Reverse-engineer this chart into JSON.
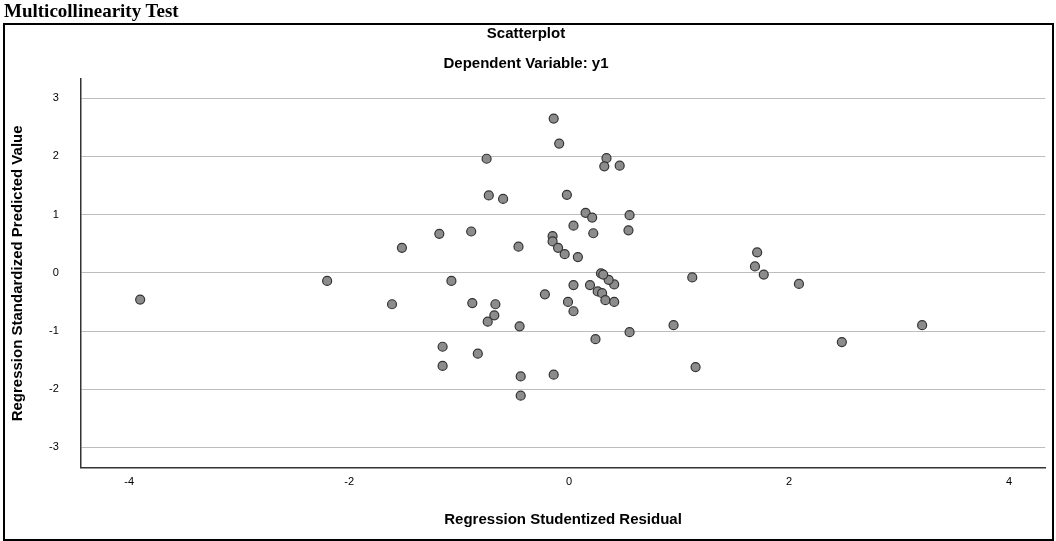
{
  "chart_data": {
    "type": "scatter",
    "title": "Scatterplot",
    "subtitle": "Dependent Variable: y1",
    "xlabel": "Regression Studentized Residual",
    "ylabel": "Regression Standardized Predicted Value",
    "annotations": [
      "Multicollinearity Test"
    ],
    "xlim": [
      -4.44,
      4.33
    ],
    "ylim": [
      -3.35,
      3.33
    ],
    "xticks": [
      -4,
      -2,
      0,
      2,
      4
    ],
    "yticks": [
      -3,
      -2,
      -1,
      0,
      1,
      2,
      3
    ],
    "grid": "y",
    "legend": false,
    "marker": "circle",
    "series": [
      {
        "color": "#8c8c8c",
        "x": [
          -3.9,
          -2.2,
          -1.52,
          -1.61,
          -1.18,
          -1.07,
          -1.15,
          -1.15,
          -0.89,
          -0.88,
          -0.67,
          -0.68,
          -0.74,
          -0.45,
          -0.22,
          0.04,
          0.19,
          -0.01,
          0.04,
          0.26,
          0.3,
          0.33,
          0.41,
          0.41,
          0.36,
          0.29,
          0.31,
          0.24,
          0.55,
          -0.83,
          -0.44,
          -0.14,
          -0.44,
          -0.14,
          -0.09,
          -0.75,
          0.34,
          0.32,
          0.46,
          -0.73,
          -0.6,
          -0.02,
          0.15,
          0.21,
          0.55,
          0.04,
          0.22,
          0.54,
          -0.15,
          -0.15,
          -0.1,
          -0.46,
          -0.04,
          0.08,
          0.95,
          1.12,
          1.15,
          1.71,
          1.69,
          1.77,
          2.09,
          2.48,
          3.21
        ],
        "values": [
          -0.46,
          -0.14,
          0.43,
          -0.54,
          0.67,
          -0.14,
          -1.27,
          -1.6,
          0.71,
          -0.52,
          -0.54,
          -0.73,
          -0.84,
          -0.92,
          -0.37,
          -0.21,
          -0.21,
          -0.5,
          -0.66,
          -0.32,
          -0.35,
          -0.47,
          -0.5,
          -0.2,
          -0.12,
          -0.01,
          -0.03,
          -1.14,
          -1.02,
          -1.39,
          -1.78,
          -1.75,
          -2.11,
          2.65,
          2.22,
          1.96,
          1.97,
          1.83,
          1.84,
          1.33,
          1.27,
          1.34,
          1.03,
          0.95,
          0.99,
          0.81,
          0.68,
          0.73,
          0.63,
          0.54,
          0.43,
          0.45,
          0.32,
          0.27,
          -0.9,
          -0.08,
          -1.62,
          0.35,
          0.11,
          -0.03,
          -0.19,
          -1.19,
          -0.9
        ]
      }
    ]
  }
}
